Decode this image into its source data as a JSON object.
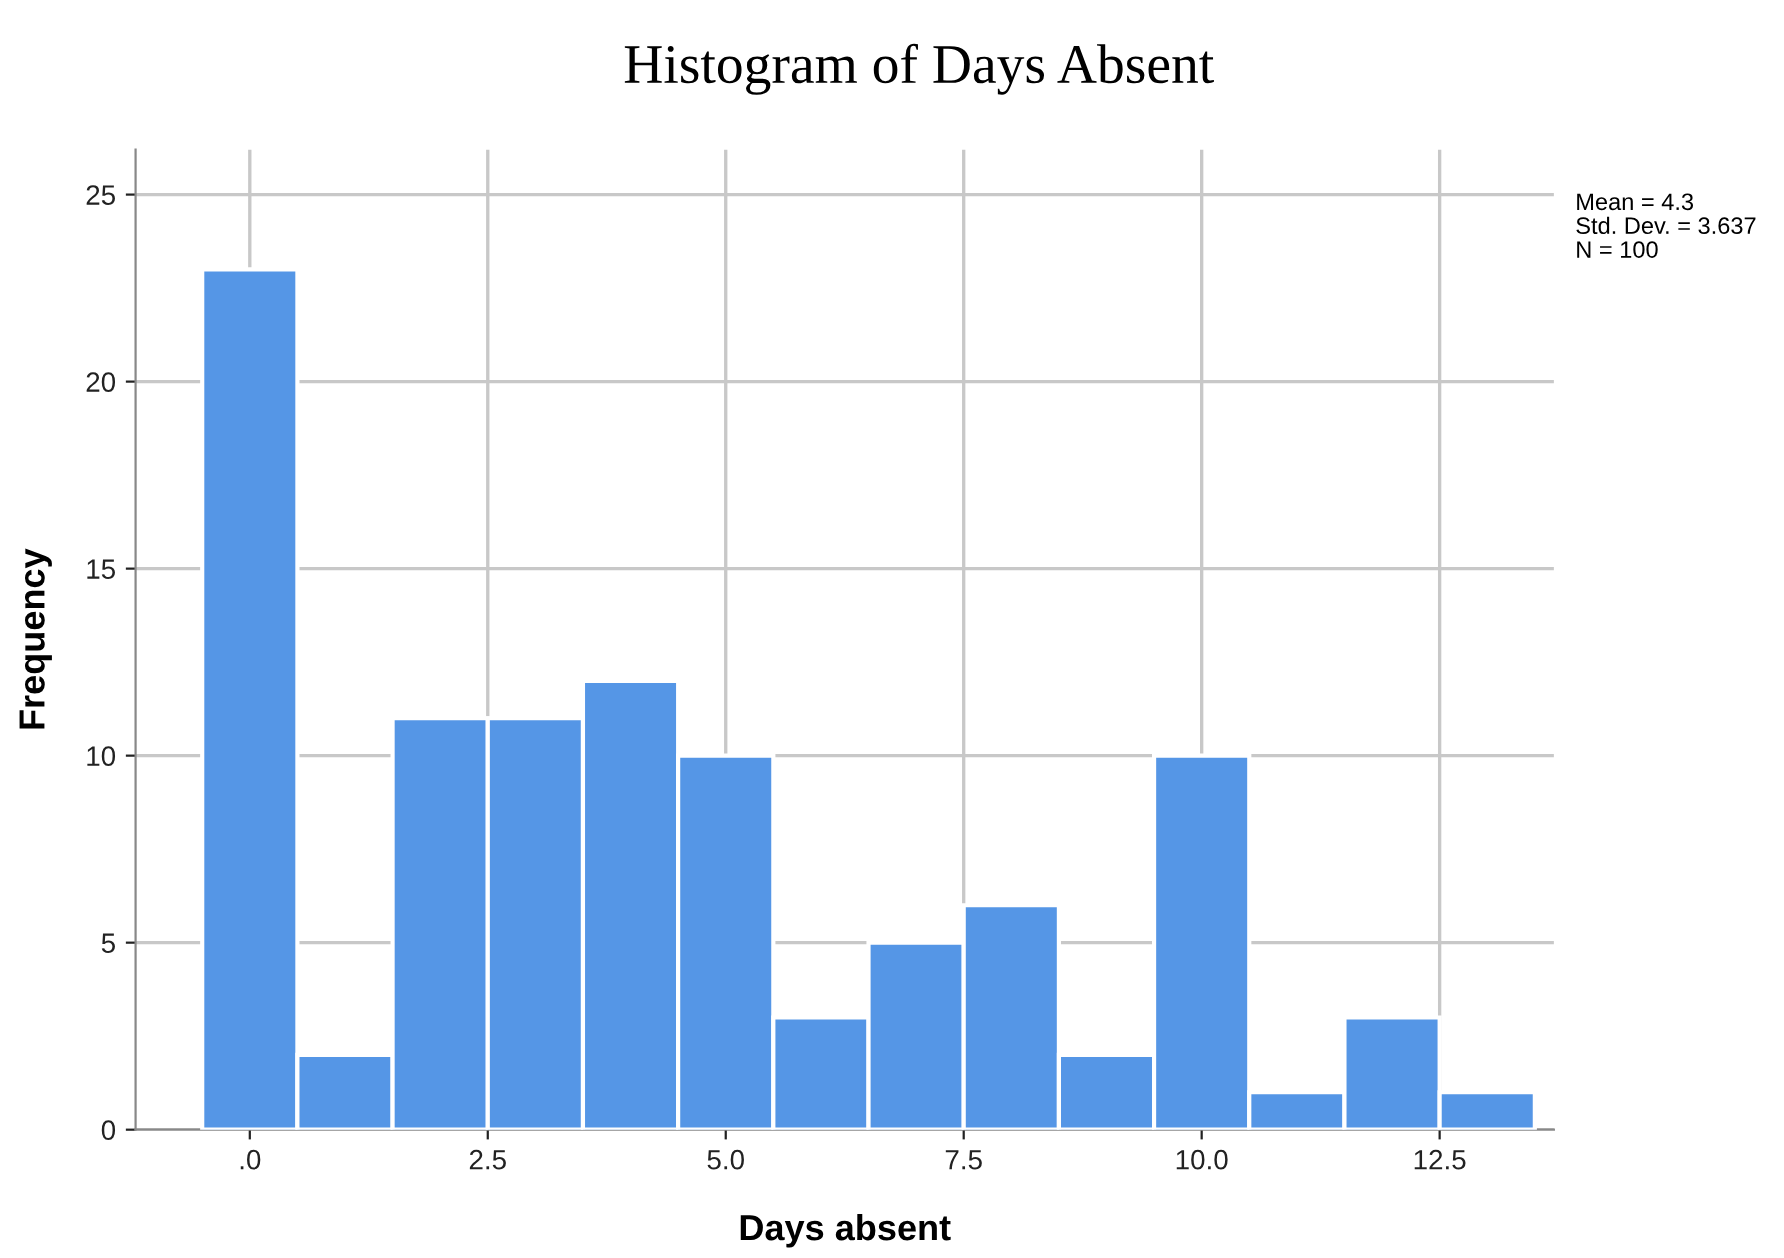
{
  "chart_data": {
    "type": "histogram",
    "title": "Histogram of Days Absent",
    "xlabel": "Days absent",
    "ylabel": "Frequency",
    "bins": [
      -0.5,
      0.5,
      1.5,
      2.5,
      3.5,
      4.5,
      5.5,
      6.5,
      7.5,
      8.5,
      9.5,
      10.5,
      11.5,
      12.5,
      13.5
    ],
    "values": [
      23,
      2,
      11,
      11,
      12,
      10,
      3,
      5,
      6,
      2,
      10,
      1,
      3,
      1
    ],
    "color": "#5596e6",
    "xlim": [
      -1.2,
      13.7
    ],
    "xticks": [
      {
        "value": 0,
        "label": ".0"
      },
      2.5,
      {
        "value": 5,
        "label": "5.0"
      },
      7.5,
      {
        "value": 10,
        "label": "10.0"
      },
      12.5
    ],
    "ylim": [
      0,
      26.2
    ],
    "yticks": [
      0,
      5,
      10,
      15,
      20,
      25
    ],
    "grid": true,
    "annotations": [
      "Mean = 4.3",
      "Std. Dev. = 3.637",
      "N = 100"
    ]
  }
}
